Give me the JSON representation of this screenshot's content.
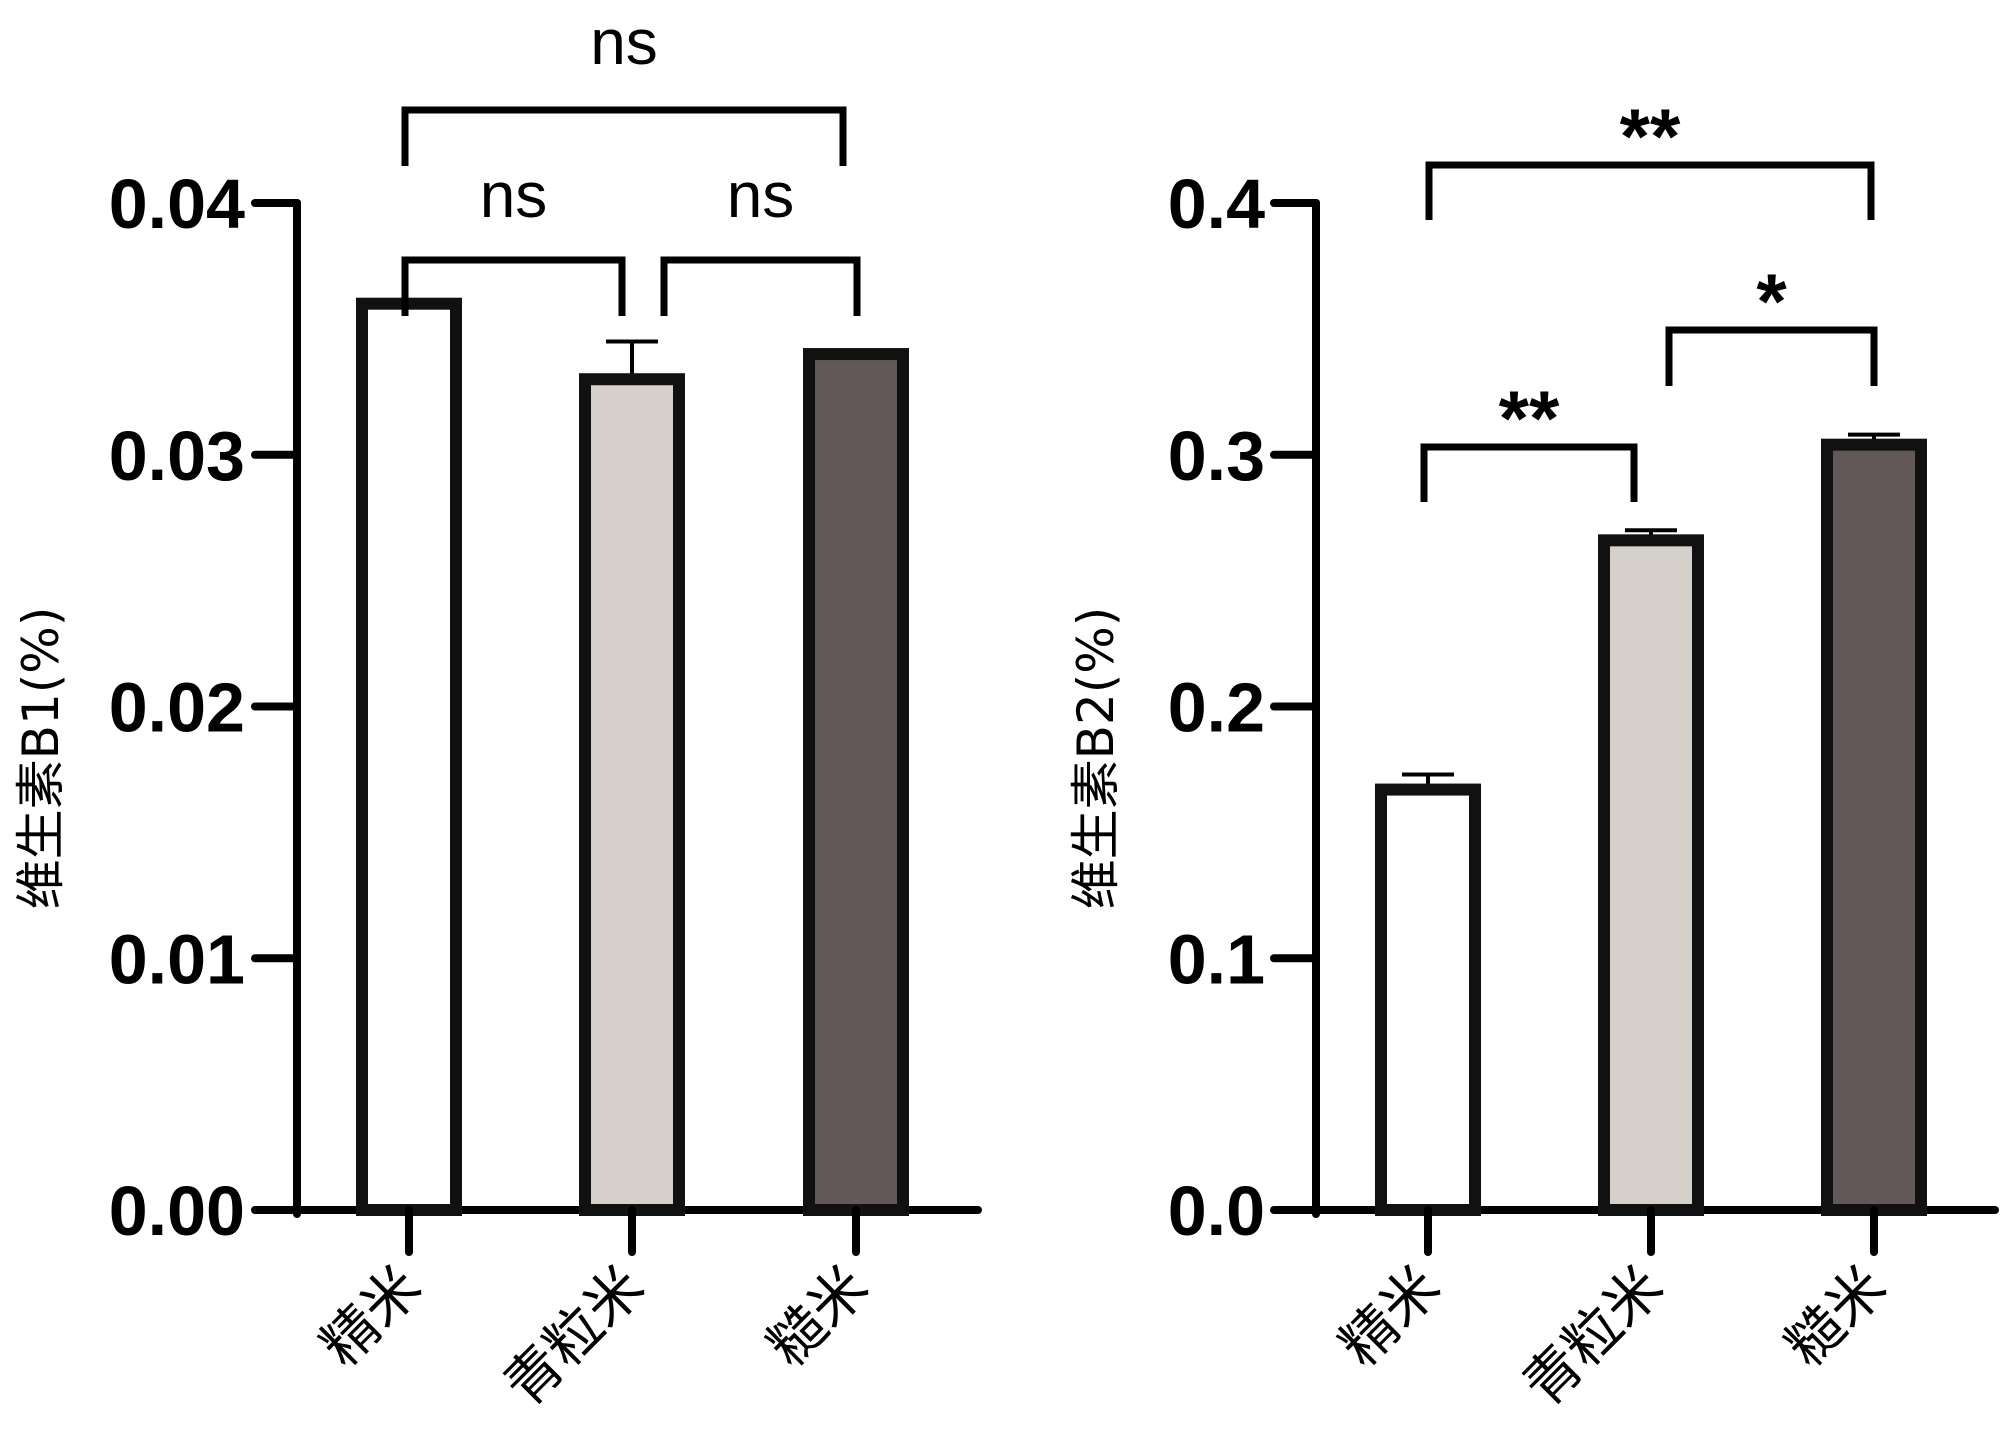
{
  "chart_data": [
    {
      "type": "bar",
      "ylabel": "维生素B1(%)",
      "categories": [
        "精米",
        "青粒米",
        "糙米"
      ],
      "values": [
        0.036,
        0.033,
        0.034
      ],
      "errors": [
        0,
        0.0015,
        0
      ],
      "colors": [
        "#ffffff",
        "#d6d0cb",
        "#625857"
      ],
      "ylim": [
        0,
        0.04
      ],
      "yticks": [
        "0.00",
        "0.01",
        "0.02",
        "0.03",
        "0.04"
      ],
      "significance": [
        {
          "from": 0,
          "to": 1,
          "label": "ns"
        },
        {
          "from": 1,
          "to": 2,
          "label": "ns"
        },
        {
          "from": 0,
          "to": 2,
          "label": "ns"
        }
      ]
    },
    {
      "type": "bar",
      "ylabel": "维生素B2(%)",
      "categories": [
        "精米",
        "青粒米",
        "糙米"
      ],
      "values": [
        0.167,
        0.266,
        0.304
      ],
      "errors": [
        0.006,
        0.004,
        0.004
      ],
      "colors": [
        "#ffffff",
        "#d6d0cb",
        "#625857"
      ],
      "ylim": [
        0,
        0.4
      ],
      "yticks": [
        "0.0",
        "0.1",
        "0.2",
        "0.3",
        "0.4"
      ],
      "significance": [
        {
          "from": 0,
          "to": 1,
          "label": "**"
        },
        {
          "from": 1,
          "to": 2,
          "label": "*"
        },
        {
          "from": 0,
          "to": 2,
          "label": "**"
        }
      ]
    }
  ]
}
